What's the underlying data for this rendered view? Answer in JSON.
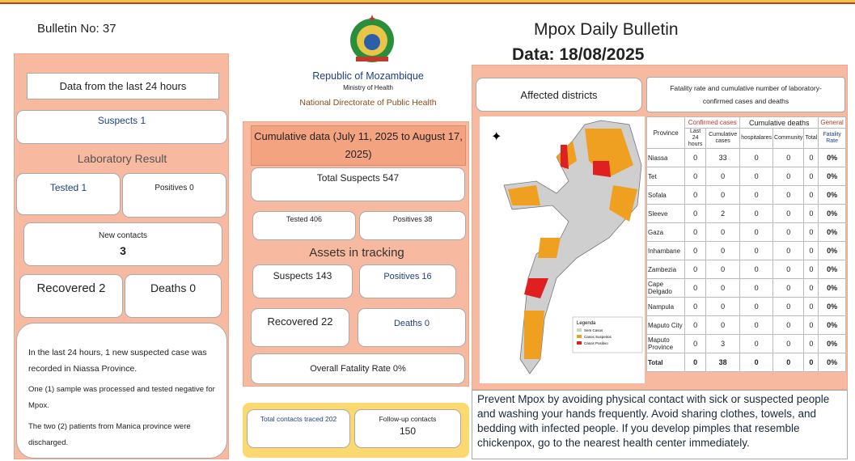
{
  "header": {
    "bulletin_no": "Bulletin No: 37",
    "title": "Mpox Daily Bulletin",
    "date": "Data: 18/08/2025",
    "republic": "Republic of Mozambique",
    "ministry": "Ministry of Health",
    "directorate": "National Directorate of Public Health"
  },
  "last_24h": {
    "heading": "Data from the last 24 hours",
    "suspects": "Suspects 1",
    "lab_heading": "Laboratory Result",
    "tested": "Tested 1",
    "positives": "Positives 0",
    "new_contacts_label": "New contacts",
    "new_contacts": "3",
    "recovered": "Recovered 2",
    "deaths": "Deaths 0",
    "notes": [
      "In the last 24 hours, 1 new suspected case was recorded in Niassa Province.",
      "One (1) sample was processed and tested negative for Mpox.",
      "The two (2) patients from Manica province were discharged."
    ]
  },
  "cumulative": {
    "heading": "Cumulative data (July 11, 2025 to August 17, 2025)",
    "total_suspects": "Total Suspects 547",
    "tested": "Tested 406",
    "positives": "Positives 38",
    "tracking_heading": "Assets in tracking",
    "suspects": "Suspects 143",
    "tracked_positives": "Positives 16",
    "recovered": "Recovered 22",
    "deaths": "Deaths 0",
    "fatality": "Overall Fatality Rate 0%",
    "contacts_traced": "Total contacts traced 202",
    "followup_label": "Follow-up contacts",
    "followup": "150"
  },
  "districts": {
    "heading": "Affected districts",
    "legend": {
      "title": "Legenda",
      "items": [
        "Sem Casos",
        "Casos Suspeitos",
        "Casos Positivo"
      ]
    }
  },
  "table": {
    "title": "Fatality rate and cumulative number of laboratory-confirmed cases and deaths",
    "groups": [
      "Confirmed cases",
      "Cumulative deaths",
      "General"
    ],
    "headers": [
      "Province",
      "Last 24 hours",
      "Cumulative cases",
      "hospitalares",
      "Community",
      "Total",
      "Fatality Rate"
    ],
    "rows": [
      [
        "Niassa",
        0,
        33,
        0,
        0,
        0,
        "0%"
      ],
      [
        "Tet",
        0,
        0,
        0,
        0,
        0,
        "0%"
      ],
      [
        "Sofala",
        0,
        0,
        0,
        0,
        0,
        "0%"
      ],
      [
        "Sleeve",
        0,
        2,
        0,
        0,
        0,
        "0%"
      ],
      [
        "Gaza",
        0,
        0,
        0,
        0,
        0,
        "0%"
      ],
      [
        "Inhambane",
        0,
        0,
        0,
        0,
        0,
        "0%"
      ],
      [
        "Zambezia",
        0,
        0,
        0,
        0,
        0,
        "0%"
      ],
      [
        "Cape Delgado",
        0,
        0,
        0,
        0,
        0,
        "0%"
      ],
      [
        "Nampula",
        0,
        0,
        0,
        0,
        0,
        "0%"
      ],
      [
        "Maputo City",
        0,
        0,
        0,
        0,
        0,
        "0%"
      ],
      [
        "Maputo Province",
        0,
        3,
        0,
        0,
        0,
        "0%"
      ],
      [
        "Total",
        0,
        38,
        0,
        0,
        0,
        "0%"
      ]
    ]
  },
  "prevention": "Prevent Mpox by avoiding physical contact with sick or suspected people and washing your hands frequently. Avoid sharing clothes, towels, and bedding with infected people. If you develop pimples that resemble chickenpox, go to the nearest health center immediately."
}
